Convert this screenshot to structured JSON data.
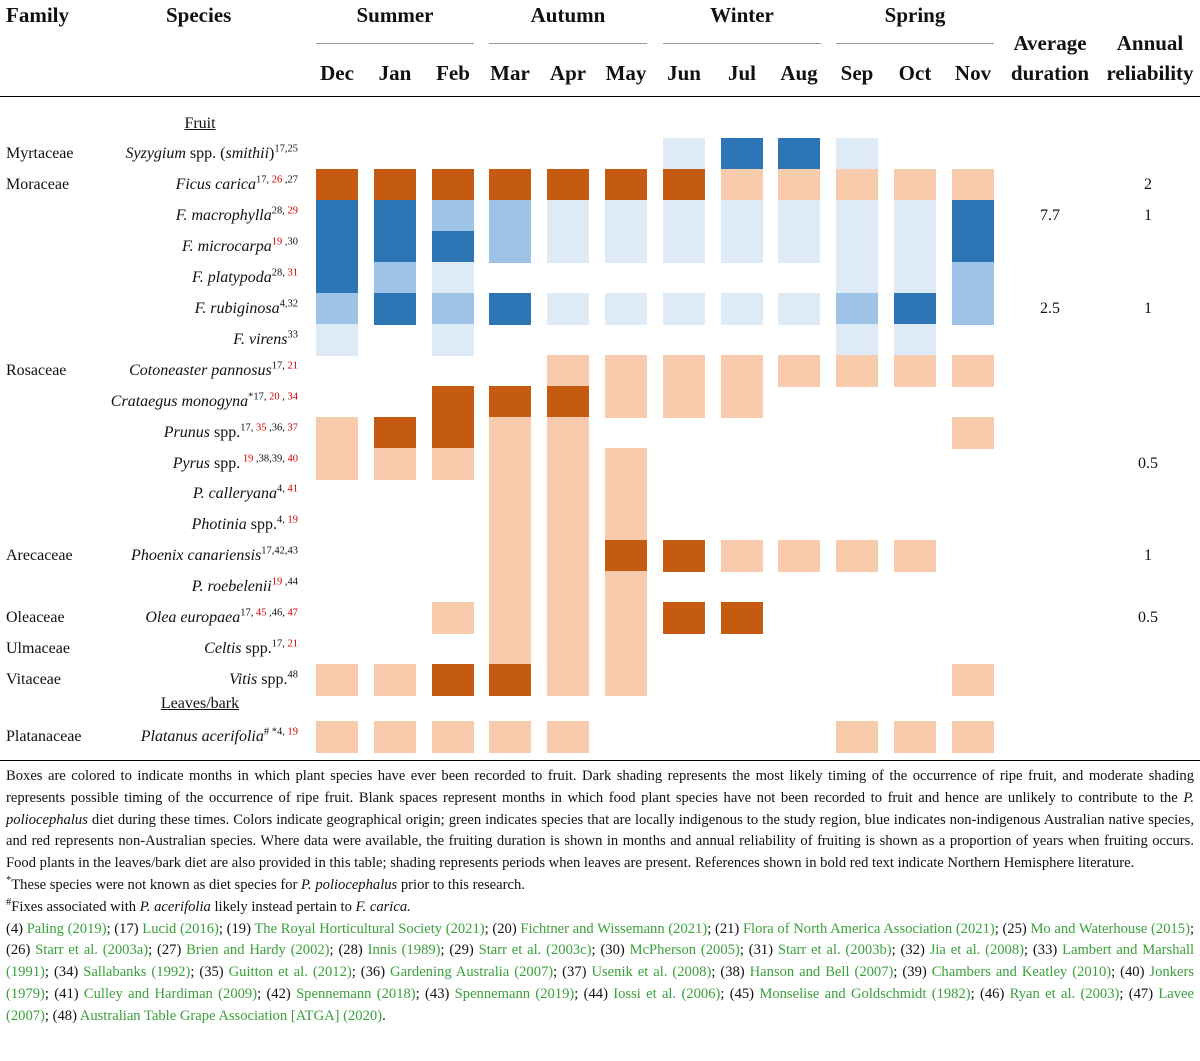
{
  "header": {
    "family": "Family",
    "species": "Species",
    "seasons": [
      "Summer",
      "Autumn",
      "Winter",
      "Spring"
    ],
    "months": [
      "Dec",
      "Jan",
      "Feb",
      "Mar",
      "Apr",
      "May",
      "Jun",
      "Jul",
      "Aug",
      "Sep",
      "Oct",
      "Nov"
    ],
    "avg_duration_1": "Average",
    "avg_duration_2": "duration",
    "annual_rel_1": "Annual",
    "annual_rel_2": "reliability"
  },
  "sections": {
    "fruit": "Fruit",
    "leaves": "Leaves/bark"
  },
  "colors": {
    "dark_blue": "#2e75b6",
    "mid_blue": "#9dc3e6",
    "light_blue": "#deebf7",
    "dark_orange": "#c55a11",
    "light_orange": "#f8cbad",
    "ref_green": "#3aa13a",
    "ref_red": "#d00000"
  },
  "rows": [
    {
      "family": "Myrtaceae",
      "name": "Syzygium",
      "name_rest": " spp. (",
      "name_it2": "smithii",
      "name_tail": ")",
      "refs": [
        {
          "t": "17,25",
          "red": false
        }
      ],
      "cells": [
        "",
        "",
        "",
        "",
        "",
        "",
        "L",
        "D",
        "D",
        "L",
        "",
        ""
      ],
      "color": "blue",
      "avg": "",
      "rel": ""
    },
    {
      "family": "Moraceae",
      "name": "Ficus carica",
      "refs": [
        {
          "t": "17,",
          "red": false
        },
        {
          "t": " 26",
          "red": true
        },
        {
          "t": " ,27",
          "red": false
        }
      ],
      "cells": [
        "D",
        "D",
        "D",
        "D",
        "D",
        "D",
        "D",
        "L",
        "L",
        "L",
        "L",
        "L"
      ],
      "color": "orange",
      "avg": "",
      "rel": "2"
    },
    {
      "family": "",
      "name": "F. macrophylla",
      "refs": [
        {
          "t": "28,",
          "red": false
        },
        {
          "t": " 29",
          "red": true
        }
      ],
      "cells": [
        "D",
        "D",
        "M",
        "M",
        "L",
        "L",
        "L",
        "L",
        "L",
        "L",
        "L",
        "D"
      ],
      "color": "blue",
      "avg": "7.7",
      "rel": "1"
    },
    {
      "family": "",
      "name": "F. microcarpa",
      "refs": [
        {
          "t": "19",
          "red": true
        },
        {
          "t": " ,30",
          "red": false
        }
      ],
      "cells": [
        "D",
        "D",
        "D",
        "M",
        "L",
        "L",
        "L",
        "L",
        "L",
        "L",
        "L",
        "D"
      ],
      "color": "blue",
      "avg": "",
      "rel": ""
    },
    {
      "family": "",
      "name": "F. platypoda",
      "refs": [
        {
          "t": "28,",
          "red": false
        },
        {
          "t": " 31",
          "red": true
        }
      ],
      "cells": [
        "D",
        "M",
        "L",
        "",
        "",
        "",
        "",
        "",
        "",
        "L",
        "L",
        "M"
      ],
      "color": "blue",
      "avg": "",
      "rel": ""
    },
    {
      "family": "",
      "name": "F. rubiginosa",
      "refs": [
        {
          "t": "4,32",
          "red": false
        }
      ],
      "cells": [
        "M",
        "D",
        "M",
        "D",
        "L",
        "L",
        "L",
        "L",
        "L",
        "M",
        "D",
        "M"
      ],
      "color": "blue",
      "avg": "2.5",
      "rel": "1"
    },
    {
      "family": "",
      "name": "F. virens",
      "refs": [
        {
          "t": "33",
          "red": false
        }
      ],
      "cells": [
        "L",
        "",
        "L",
        "",
        "",
        "",
        "",
        "",
        "",
        "L",
        "L",
        ""
      ],
      "color": "blue",
      "avg": "",
      "rel": ""
    },
    {
      "family": "Rosaceae",
      "name": "Cotoneaster pannosus",
      "refs": [
        {
          "t": "17,",
          "red": false
        },
        {
          "t": " 21",
          "red": true
        }
      ],
      "cells": [
        "",
        "",
        "",
        "",
        "L",
        "L",
        "L",
        "L",
        "L",
        "L",
        "L",
        "L"
      ],
      "color": "orange",
      "avg": "",
      "rel": ""
    },
    {
      "family": "",
      "name": "Crataegus monogyna",
      "refs": [
        {
          "t": "*17,",
          "red": false
        },
        {
          "t": " 20",
          "red": true
        },
        {
          "t": " ,",
          "red": false
        },
        {
          "t": " 34",
          "red": true
        }
      ],
      "cells": [
        "",
        "",
        "D",
        "D",
        "D",
        "L",
        "L",
        "L",
        "",
        "",
        "",
        ""
      ],
      "color": "orange",
      "avg": "",
      "rel": ""
    },
    {
      "family": "",
      "name": "Prunus",
      "name_rest": " spp.",
      "refs": [
        {
          "t": "17,",
          "red": false
        },
        {
          "t": " 35",
          "red": true
        },
        {
          "t": " ,36,",
          "red": false
        },
        {
          "t": " 37",
          "red": true
        }
      ],
      "cells": [
        "L",
        "D",
        "D",
        "L",
        "L",
        "",
        "",
        "",
        "",
        "",
        "",
        "L"
      ],
      "color": "orange",
      "avg": "",
      "rel": ""
    },
    {
      "family": "",
      "name": "Pyrus",
      "name_rest": " spp.",
      "refs": [
        {
          "t": " 19",
          "red": true
        },
        {
          "t": " ,38,39,",
          "red": false
        },
        {
          "t": " 40",
          "red": true
        }
      ],
      "cells": [
        "L",
        "L",
        "L",
        "L",
        "L",
        "L",
        "",
        "",
        "",
        "",
        "",
        ""
      ],
      "color": "orange",
      "avg": "",
      "rel": "0.5"
    },
    {
      "family": "",
      "name": "P. calleryana",
      "refs": [
        {
          "t": "4,",
          "red": false
        },
        {
          "t": " 41",
          "red": true
        }
      ],
      "cells": [
        "",
        "",
        "",
        "L",
        "L",
        "L",
        "",
        "",
        "",
        "",
        "",
        ""
      ],
      "color": "orange",
      "avg": "",
      "rel": ""
    },
    {
      "family": "",
      "name": "Photinia",
      "name_rest": " spp.",
      "refs": [
        {
          "t": "4,",
          "red": false
        },
        {
          "t": " 19",
          "red": true
        }
      ],
      "cells": [
        "",
        "",
        "",
        "L",
        "L",
        "L",
        "",
        "",
        "",
        "",
        "",
        ""
      ],
      "color": "orange",
      "avg": "",
      "rel": ""
    },
    {
      "family": "Arecaceae",
      "name": "Phoenix canariensis",
      "refs": [
        {
          "t": "17,42,43",
          "red": false
        }
      ],
      "cells": [
        "",
        "",
        "",
        "L",
        "L",
        "D",
        "D",
        "L",
        "L",
        "L",
        "L",
        ""
      ],
      "color": "orange",
      "avg": "",
      "rel": "1"
    },
    {
      "family": "",
      "name": "P. roebelenii",
      "refs": [
        {
          "t": "19",
          "red": true
        },
        {
          "t": " ,44",
          "red": false
        }
      ],
      "cells": [
        "",
        "",
        "",
        "L",
        "L",
        "L",
        "",
        "",
        "",
        "",
        "",
        ""
      ],
      "color": "orange",
      "avg": "",
      "rel": ""
    },
    {
      "family": "Oleaceae",
      "name": "Olea europaea",
      "refs": [
        {
          "t": "17,",
          "red": false
        },
        {
          "t": " 45",
          "red": true
        },
        {
          "t": " ,46,",
          "red": false
        },
        {
          "t": " 47",
          "red": true
        }
      ],
      "cells": [
        "",
        "",
        "L",
        "L",
        "L",
        "L",
        "D",
        "D",
        "",
        "",
        "",
        ""
      ],
      "color": "orange",
      "avg": "",
      "rel": "0.5"
    },
    {
      "family": "Ulmaceae",
      "name": "Celtis",
      "name_rest": " spp.",
      "refs": [
        {
          "t": "17,",
          "red": false
        },
        {
          "t": " 21",
          "red": true
        }
      ],
      "cells": [
        "",
        "",
        "",
        "L",
        "L",
        "L",
        "",
        "",
        "",
        "",
        "",
        ""
      ],
      "color": "orange",
      "avg": "",
      "rel": ""
    },
    {
      "family": "Vitaceae",
      "name": "Vitis",
      "name_rest": " spp.",
      "refs": [
        {
          "t": "48",
          "red": false
        }
      ],
      "cells": [
        "L",
        "L",
        "D",
        "D",
        "L",
        "L",
        "",
        "",
        "",
        "",
        "",
        "L"
      ],
      "color": "orange",
      "avg": "",
      "rel": ""
    },
    {
      "family": "Platanaceae",
      "name": "Platanus acerifolia",
      "refs": [
        {
          "t": "# *4,",
          "red": false
        },
        {
          "t": " 19",
          "red": true
        }
      ],
      "cells": [
        "L",
        "L",
        "L",
        "L",
        "L",
        "",
        "",
        "",
        "",
        "L",
        "L",
        "L"
      ],
      "color": "orange",
      "avg": "",
      "rel": "",
      "leaves": true
    }
  ],
  "notes": {
    "para_a": "Boxes are colored to indicate months in which plant species have ever been recorded to fruit. Dark shading represents the most likely timing of the occurrence of ripe fruit, and moderate shading represents possible timing of the occurrence of ripe fruit. Blank spaces represent months in which food plant species have not been recorded to fruit and hence are unlikely to contribute to the ",
    "species_it": "P. poliocephalus",
    "para_b": " diet during these times. Colors indicate geographical origin; green indicates species that are locally indigenous to the study region, blue indicates non-indigenous Australian native species, and red represents non-Australian species. Where data were available, the fruiting duration is shown in months and annual reliability of fruiting is shown as a proportion of years when fruiting occurs. Food plants in the leaves/bark diet are also provided in this table; shading represents periods when leaves are present. References shown in bold red text indicate Northern Hemisphere literature.",
    "star_mark": "*",
    "star_a": "These species were not known as diet species for ",
    "star_b": " prior to this research.",
    "hash_mark": "#",
    "hash_a": "Fixes associated with ",
    "hash_it1": "P. acerifolia",
    "hash_b": " likely instead pertain to ",
    "hash_it2": "F. carica.",
    "refs": [
      {
        "n": "(4)",
        "a": "Paling",
        "y": "(2019)"
      },
      {
        "n": "(17)",
        "a": "Lucid",
        "y": "(2016)"
      },
      {
        "n": "(19)",
        "a": "The Royal Horticultural Society",
        "y": "(2021)"
      },
      {
        "n": "(20)",
        "a": "Fichtner and Wissemann",
        "y": "(2021)"
      },
      {
        "n": "(21)",
        "a": "Flora of North America Association",
        "y": "(2021)"
      },
      {
        "n": "(25)",
        "a": "Mo and Waterhouse",
        "y": "(2015)"
      },
      {
        "n": "(26)",
        "a": "Starr et al.",
        "y": "(2003a)"
      },
      {
        "n": "(27)",
        "a": "Brien and Hardy",
        "y": "(2002)"
      },
      {
        "n": "(28)",
        "a": "Innis",
        "y": "(1989)"
      },
      {
        "n": "(29)",
        "a": "Starr et al.",
        "y": "(2003c)"
      },
      {
        "n": "(30)",
        "a": "McPherson",
        "y": "(2005)"
      },
      {
        "n": "(31)",
        "a": "Starr et al.",
        "y": "(2003b)"
      },
      {
        "n": "(32)",
        "a": "Jia et al.",
        "y": "(2008)"
      },
      {
        "n": "(33)",
        "a": "Lambert and Marshall",
        "y": "(1991)"
      },
      {
        "n": "(34)",
        "a": "Sallabanks",
        "y": "(1992)"
      },
      {
        "n": "(35)",
        "a": "Guitton et al.",
        "y": "(2012)"
      },
      {
        "n": "(36)",
        "a": "Gardening Australia",
        "y": "(2007)"
      },
      {
        "n": "(37)",
        "a": "Usenik et al.",
        "y": "(2008)"
      },
      {
        "n": "(38)",
        "a": "Hanson and Bell",
        "y": "(2007)"
      },
      {
        "n": "(39)",
        "a": "Chambers and Keatley",
        "y": "(2010)"
      },
      {
        "n": "(40)",
        "a": "Jonkers",
        "y": "(1979)"
      },
      {
        "n": "(41)",
        "a": "Culley and Hardiman",
        "y": "(2009)"
      },
      {
        "n": "(42)",
        "a": "Spennemann",
        "y": "(2018)"
      },
      {
        "n": "(43)",
        "a": "Spennemann",
        "y": "(2019)"
      },
      {
        "n": "(44)",
        "a": "Iossi et al.",
        "y": "(2006)"
      },
      {
        "n": "(45)",
        "a": "Monselise and Goldschmidt",
        "y": "(1982)"
      },
      {
        "n": "(46)",
        "a": "Ryan et al.",
        "y": "(2003)"
      },
      {
        "n": "(47)",
        "a": "Lavee",
        "y": "(2007)"
      },
      {
        "n": "(48)",
        "a": "Australian Table Grape Association [ATGA]",
        "y": "(2020)"
      }
    ]
  }
}
